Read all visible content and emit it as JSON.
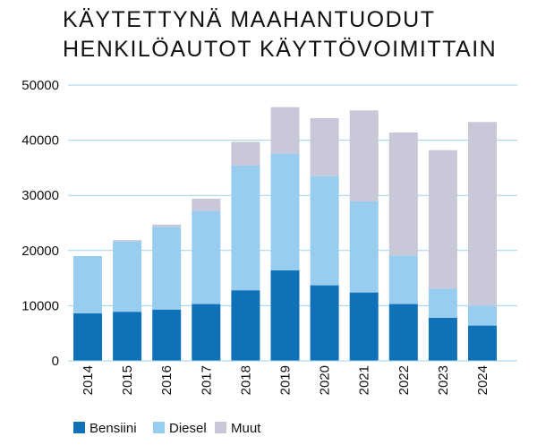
{
  "chart_data": {
    "type": "bar",
    "stacked": true,
    "title_lines": [
      "KÄYTETTYNÄ MAAHANTUODUT",
      "HENKILÖAUTOT KÄYTTÖVOIMITTAIN"
    ],
    "categories": [
      "2014",
      "2015",
      "2016",
      "2017",
      "2018",
      "2019",
      "2020",
      "2021",
      "2022",
      "2023",
      "2024"
    ],
    "series": [
      {
        "name": "Bensiini",
        "color": "#0f72b8",
        "values": [
          8600,
          8900,
          9300,
          10300,
          12800,
          16400,
          13700,
          12400,
          10300,
          7800,
          6400
        ]
      },
      {
        "name": "Diesel",
        "color": "#99cdf0",
        "values": [
          10400,
          12800,
          15000,
          16900,
          22600,
          21200,
          19800,
          16500,
          8800,
          5300,
          3600
        ]
      },
      {
        "name": "Muut",
        "color": "#c8c8d8",
        "values": [
          0,
          200,
          400,
          2200,
          4300,
          8400,
          10500,
          16500,
          22300,
          25100,
          33300
        ]
      }
    ],
    "ylim": [
      0,
      50000
    ],
    "yticks": [
      "0",
      "10000",
      "20000",
      "30000",
      "40000",
      "50000"
    ],
    "grid": true,
    "legend": "bottom-left"
  }
}
